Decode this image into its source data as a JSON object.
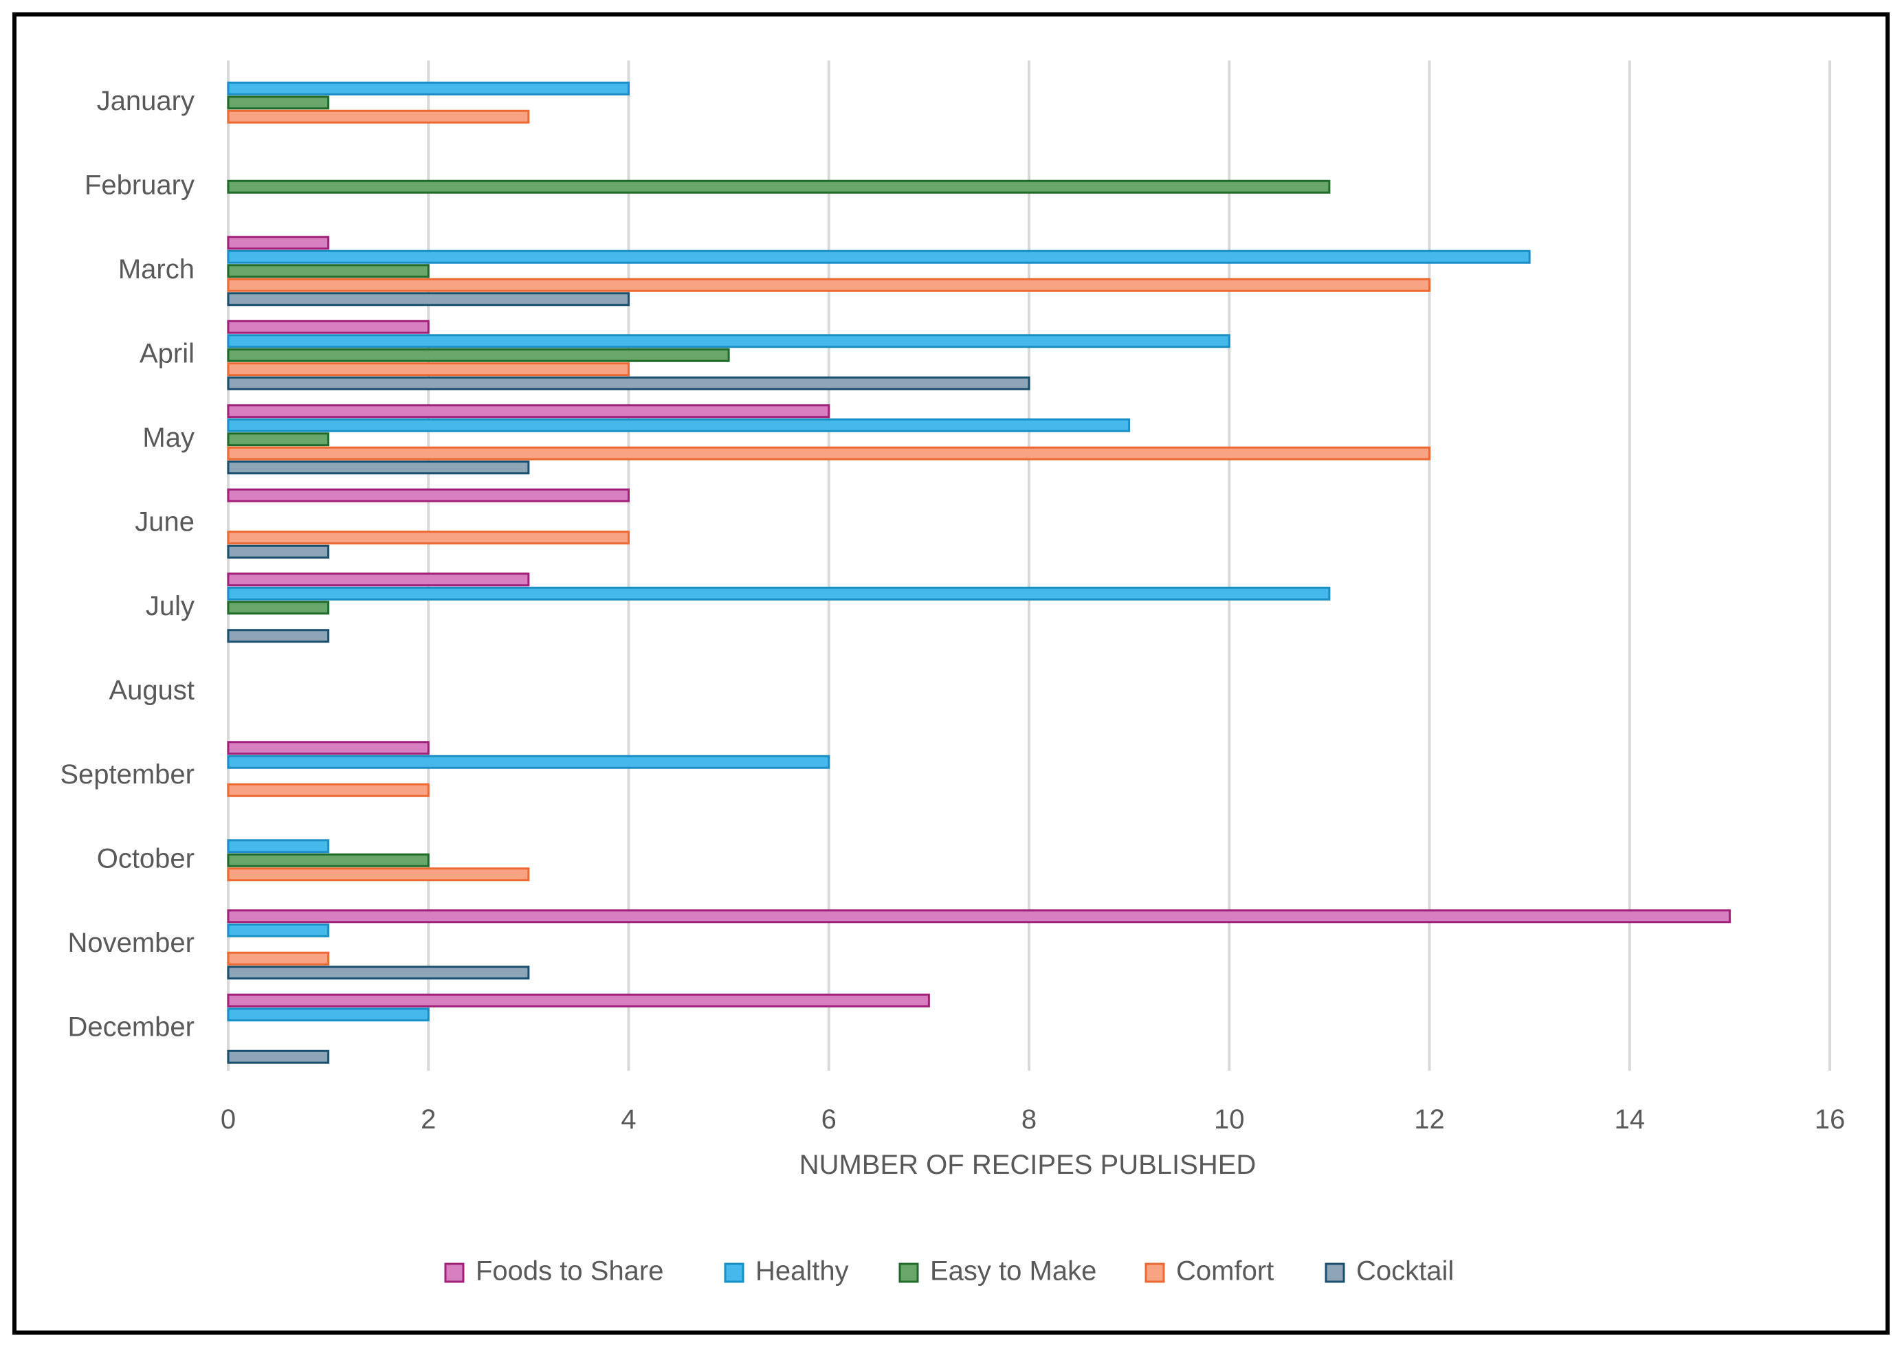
{
  "chart_data": {
    "type": "bar",
    "orientation": "horizontal",
    "title": "",
    "xlabel": "NUMBER OF RECIPES PUBLISHED",
    "ylabel": "",
    "xlim": [
      0,
      16
    ],
    "xticks": [
      0,
      2,
      4,
      6,
      8,
      10,
      12,
      14,
      16
    ],
    "grid": "vertical",
    "legend_position": "bottom",
    "categories": [
      "January",
      "February",
      "March",
      "April",
      "May",
      "June",
      "July",
      "August",
      "September",
      "October",
      "November",
      "December"
    ],
    "series": [
      {
        "name": "Foods to Share",
        "fill": "#d77fc0",
        "stroke": "#a0207a",
        "values": [
          0,
          0,
          1,
          2,
          6,
          4,
          3,
          0,
          2,
          0,
          15,
          7
        ]
      },
      {
        "name": "Healthy",
        "fill": "#47b8eb",
        "stroke": "#1a8fc6",
        "values": [
          4,
          0,
          13,
          10,
          9,
          0,
          11,
          0,
          6,
          1,
          1,
          2
        ]
      },
      {
        "name": "Easy to Make",
        "fill": "#6aa56a",
        "stroke": "#1e6b2a",
        "values": [
          1,
          11,
          2,
          5,
          1,
          0,
          1,
          0,
          0,
          2,
          0,
          0
        ]
      },
      {
        "name": "Comfort",
        "fill": "#f7a384",
        "stroke": "#ec6a32",
        "values": [
          3,
          0,
          12,
          4,
          12,
          4,
          0,
          0,
          2,
          3,
          1,
          0
        ]
      },
      {
        "name": "Cocktail",
        "fill": "#8ea5b8",
        "stroke": "#1b4f6e",
        "values": [
          0,
          0,
          4,
          8,
          3,
          1,
          1,
          0,
          0,
          0,
          3,
          1
        ]
      }
    ]
  }
}
